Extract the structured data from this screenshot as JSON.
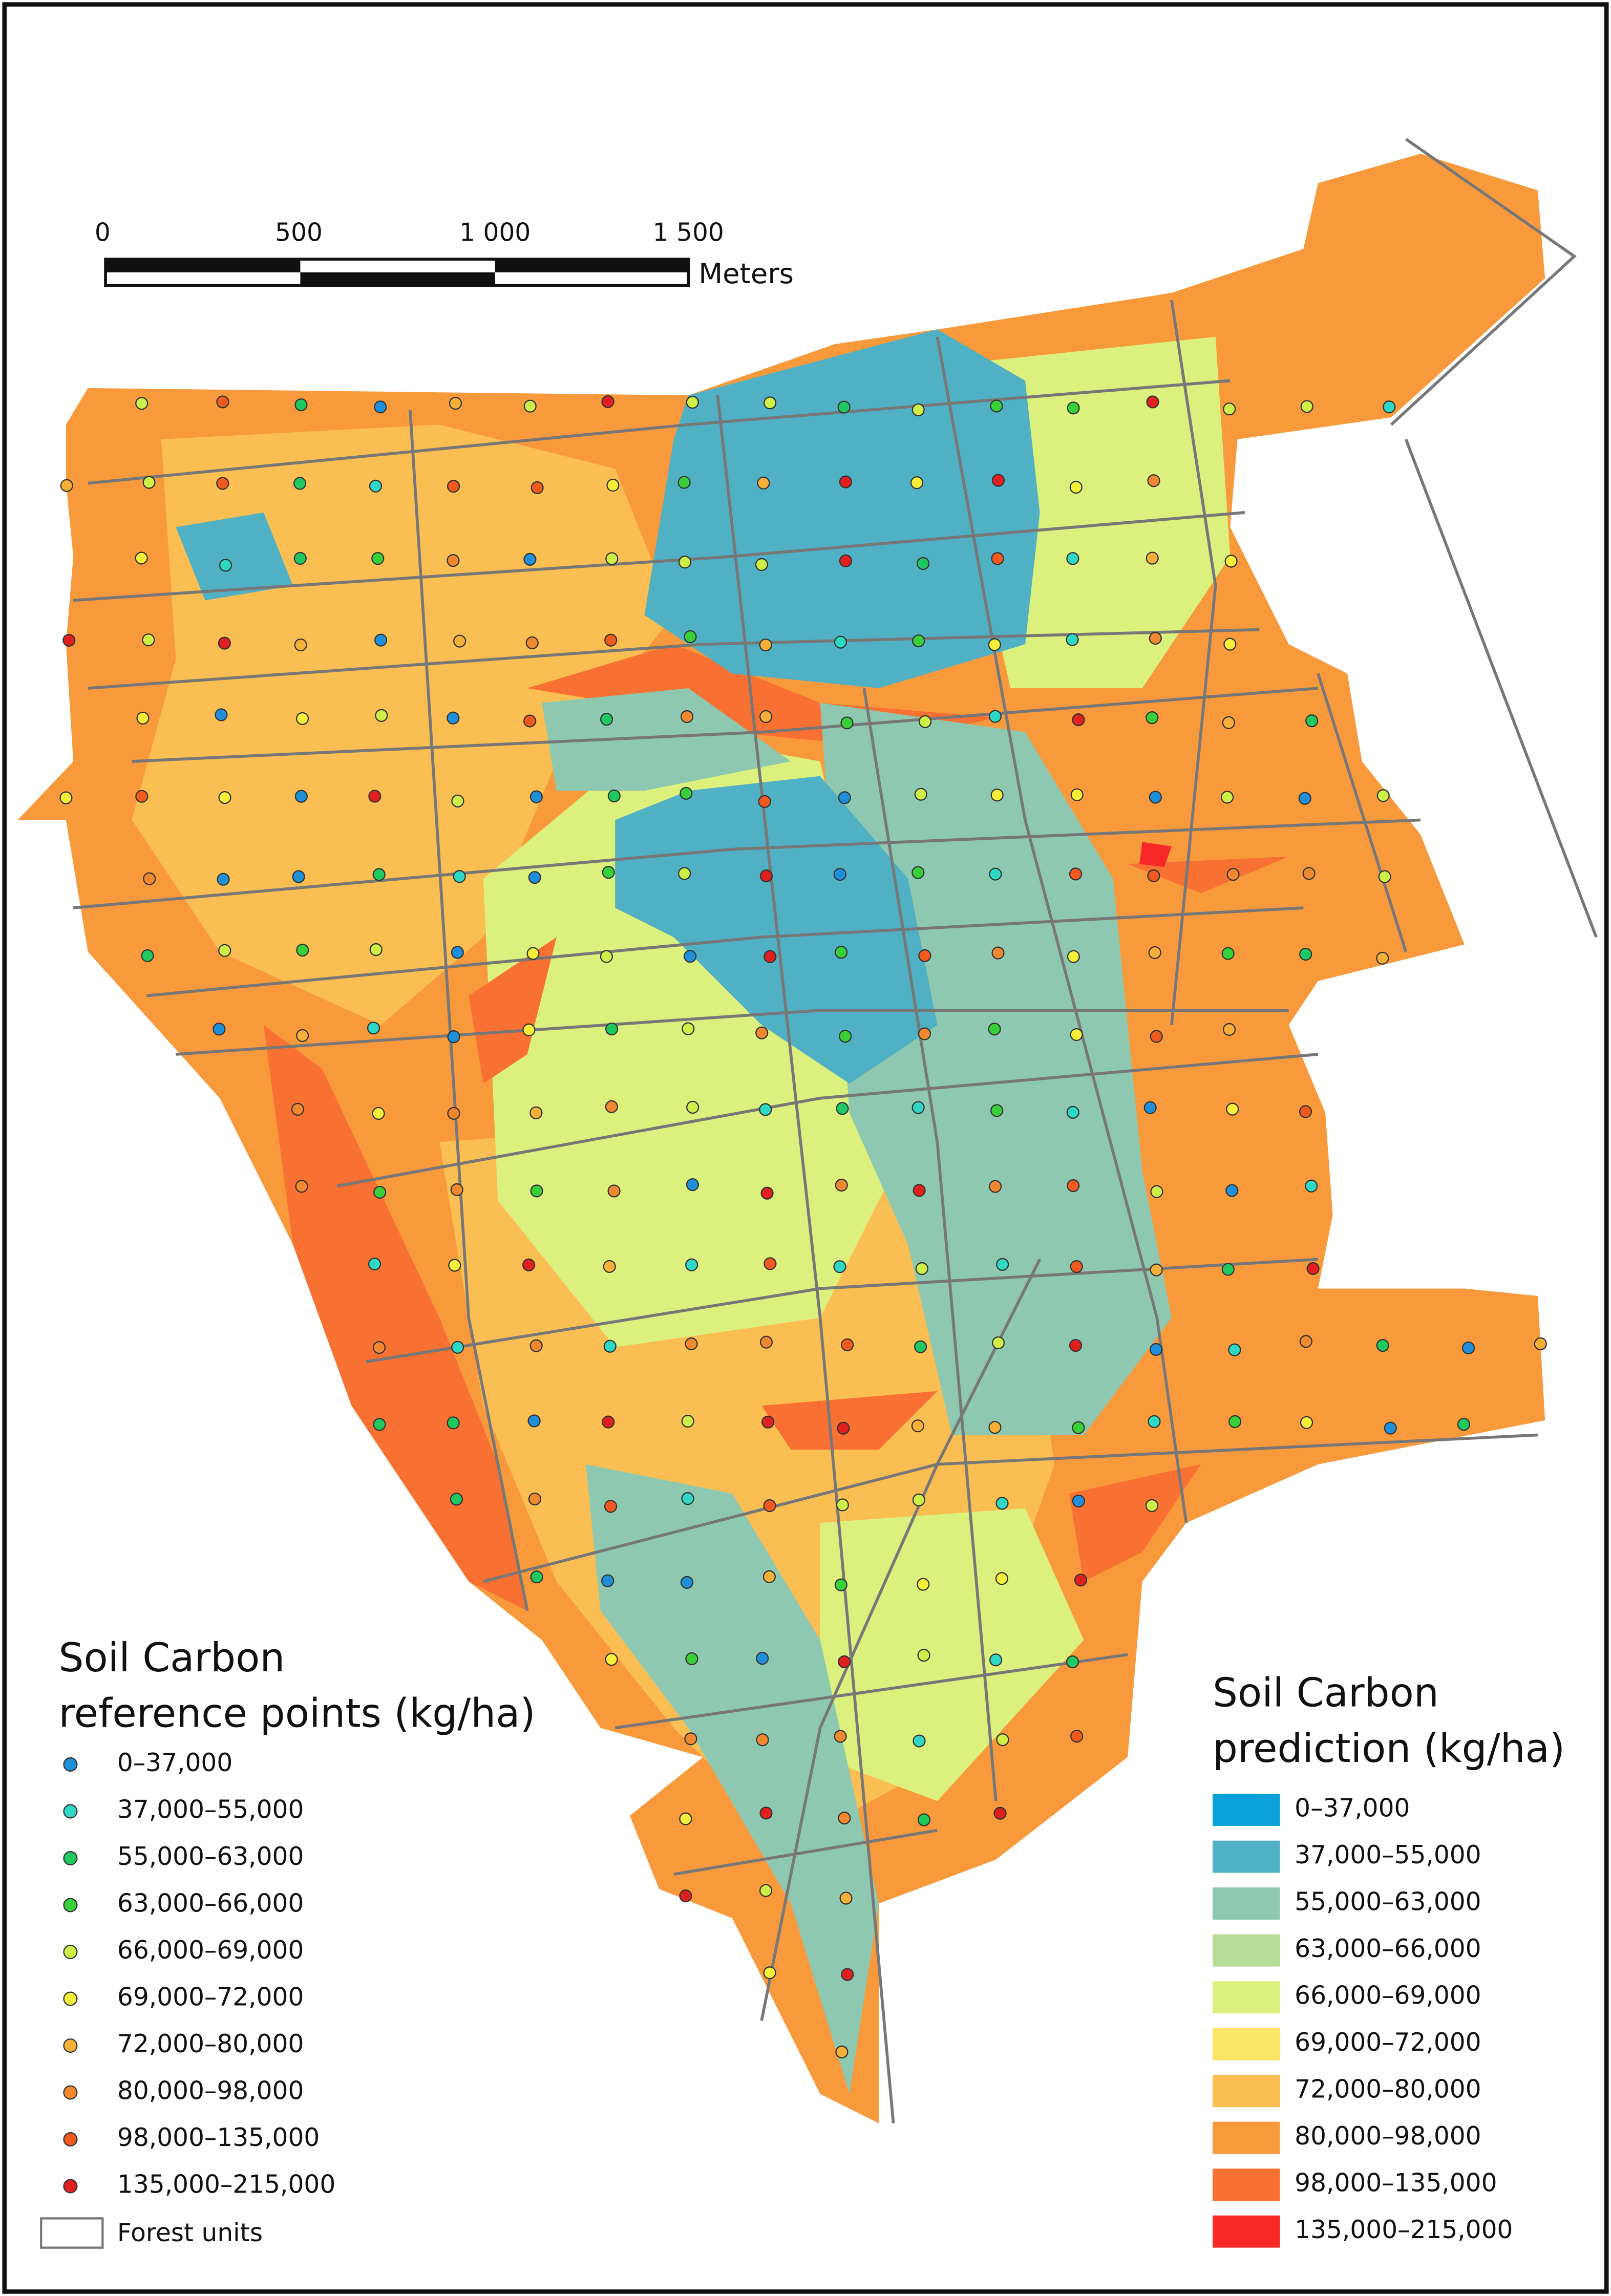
{
  "scale_bar": {
    "labels": [
      "0",
      "500",
      "1 000",
      "1 500"
    ],
    "unit": "Meters"
  },
  "points_legend": {
    "title": [
      "Soil Carbon",
      "reference points (kg/ha)"
    ],
    "items": [
      {
        "label": "0–37,000",
        "color": "#1e8fd8"
      },
      {
        "label": "37,000–55,000",
        "color": "#2ed8c4"
      },
      {
        "label": "55,000–63,000",
        "color": "#20c860"
      },
      {
        "label": "63,000–66,000",
        "color": "#38d038"
      },
      {
        "label": "66,000–69,000",
        "color": "#cdef48"
      },
      {
        "label": "69,000–72,000",
        "color": "#f6ef3a"
      },
      {
        "label": "72,000–80,000",
        "color": "#f6b038"
      },
      {
        "label": "80,000–98,000",
        "color": "#f08830"
      },
      {
        "label": "98,000–135,000",
        "color": "#f05a1e"
      },
      {
        "label": "135,000–215,000",
        "color": "#e0201e"
      }
    ],
    "forest_units": "Forest units"
  },
  "prediction_legend": {
    "title": [
      "Soil Carbon",
      "prediction (kg/ha)"
    ],
    "items": [
      {
        "label": "0–37,000",
        "color": "#0aa0d8"
      },
      {
        "label": "37,000–55,000",
        "color": "#50b0c4"
      },
      {
        "label": "55,000–63,000",
        "color": "#8ec8b0"
      },
      {
        "label": "63,000–66,000",
        "color": "#b6dc98"
      },
      {
        "label": "66,000–69,000",
        "color": "#dcf07e"
      },
      {
        "label": "69,000–72,000",
        "color": "#fae664"
      },
      {
        "label": "72,000–80,000",
        "color": "#fabe52"
      },
      {
        "label": "80,000–98,000",
        "color": "#f89a3c"
      },
      {
        "label": "98,000–135,000",
        "color": "#f87032"
      },
      {
        "label": "135,000–215,000",
        "color": "#f82828"
      }
    ]
  }
}
